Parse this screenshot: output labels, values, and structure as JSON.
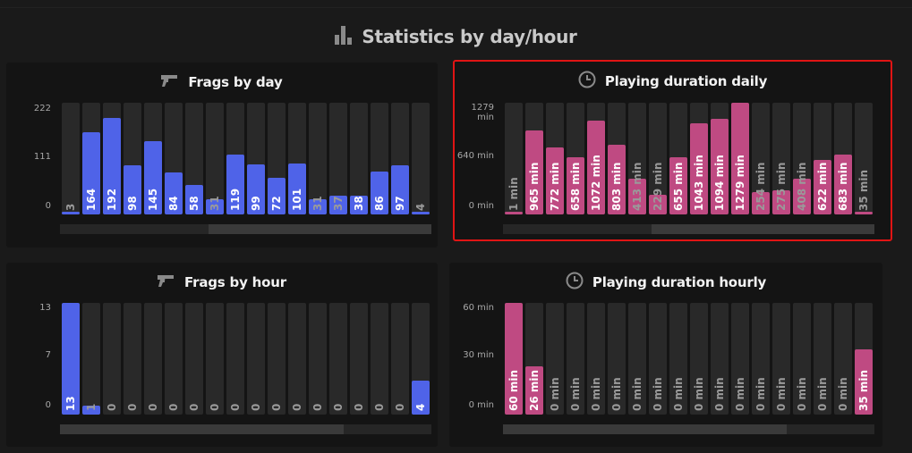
{
  "page": {
    "title": "Statistics by day/hour"
  },
  "colors": {
    "blue": "#4f63e8",
    "pink": "#bf4a82",
    "column_bg": "#292929",
    "highlight": "#e01414"
  },
  "panels": {
    "frags_day": {
      "title": "Frags by day",
      "icon": "gun-icon",
      "y_ticks": [
        "222",
        "111",
        "0"
      ],
      "labels": [
        "3",
        "164",
        "192",
        "98",
        "145",
        "84",
        "58",
        "31",
        "119",
        "99",
        "72",
        "101",
        "31",
        "37",
        "38",
        "86",
        "97",
        "4"
      ]
    },
    "duration_daily": {
      "title": "Playing duration daily",
      "icon": "clock-icon",
      "y_ticks": [
        "1279\nmin",
        "640 min",
        "0 min"
      ],
      "labels": [
        "1 min",
        "965 min",
        "772 min",
        "658 min",
        "1072 min",
        "803 min",
        "413 min",
        "229 min",
        "655 min",
        "1043 min",
        "1094 min",
        "1279 min",
        "254 min",
        "275 min",
        "408 min",
        "622 min",
        "683 min",
        "35 min"
      ]
    },
    "frags_hour": {
      "title": "Frags by hour",
      "icon": "gun-icon",
      "y_ticks": [
        "13",
        "7",
        "0"
      ],
      "labels": [
        "13",
        "1",
        "0",
        "0",
        "0",
        "0",
        "0",
        "0",
        "0",
        "0",
        "0",
        "0",
        "0",
        "0",
        "0",
        "0",
        "0",
        "4"
      ]
    },
    "duration_hourly": {
      "title": "Playing duration hourly",
      "icon": "clock-icon",
      "y_ticks": [
        "60 min",
        "30 min",
        "0 min"
      ],
      "labels": [
        "60 min",
        "26 min",
        "0 min",
        "0 min",
        "0 min",
        "0 min",
        "0 min",
        "0 min",
        "0 min",
        "0 min",
        "0 min",
        "0 min",
        "0 min",
        "0 min",
        "0 min",
        "0 min",
        "0 min",
        "35 min"
      ]
    }
  },
  "chart_data": [
    {
      "type": "bar",
      "title": "Frags by day",
      "ylim": [
        0,
        222
      ],
      "values": [
        3,
        164,
        192,
        98,
        145,
        84,
        58,
        31,
        119,
        99,
        72,
        101,
        31,
        37,
        38,
        86,
        97,
        4
      ]
    },
    {
      "type": "bar",
      "title": "Playing duration daily",
      "ylim": [
        0,
        1279
      ],
      "values": [
        1,
        965,
        772,
        658,
        1072,
        803,
        413,
        229,
        655,
        1043,
        1094,
        1279,
        254,
        275,
        408,
        622,
        683,
        35
      ]
    },
    {
      "type": "bar",
      "title": "Frags by hour",
      "ylim": [
        0,
        13
      ],
      "values": [
        13,
        1,
        0,
        0,
        0,
        0,
        0,
        0,
        0,
        0,
        0,
        0,
        0,
        0,
        0,
        0,
        0,
        4
      ]
    },
    {
      "type": "bar",
      "title": "Playing duration hourly",
      "ylim": [
        0,
        60
      ],
      "values": [
        60,
        26,
        0,
        0,
        0,
        0,
        0,
        0,
        0,
        0,
        0,
        0,
        0,
        0,
        0,
        0,
        0,
        35
      ]
    }
  ]
}
